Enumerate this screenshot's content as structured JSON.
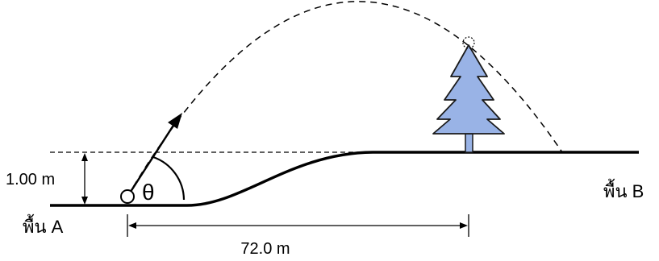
{
  "labels": {
    "height_dim": "1.00 m",
    "angle": "θ",
    "distance_dim": "72.0 m",
    "ground_a": "พื้น A",
    "ground_b": "พื้น B"
  },
  "colors": {
    "stroke": "#000000",
    "tree_fill": "#99b3e6",
    "tree_stroke": "#1a1a1a",
    "background": "#ffffff"
  }
}
